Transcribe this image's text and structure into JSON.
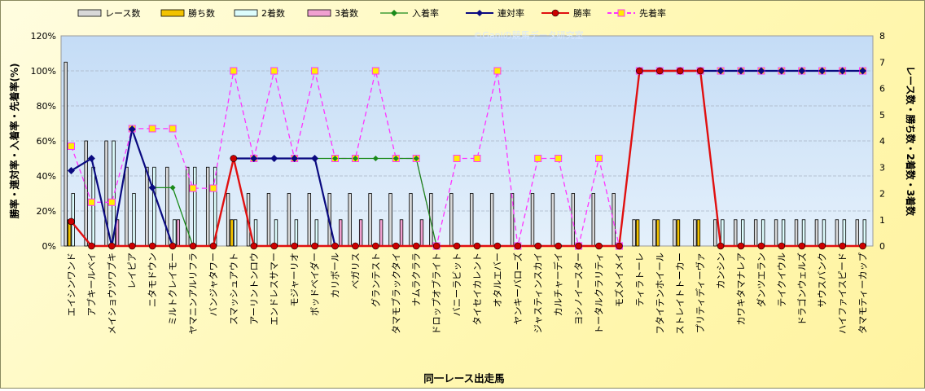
{
  "chart_data": {
    "type": "bar",
    "title": "",
    "watermark": "©Ganiの競馬データ研究室",
    "xlabel": "同一レース出走馬",
    "ylabel_left": "勝率・連対率・入着率・先着率(%)",
    "ylabel_right": "レース数・勝ち数・2着数・3着数",
    "left_ticks": [
      "0%",
      "20%",
      "40%",
      "60%",
      "80%",
      "100%",
      "120%"
    ],
    "right_ticks": [
      "0",
      "1",
      "2",
      "3",
      "4",
      "5",
      "6",
      "7",
      "8"
    ],
    "ylim_left": [
      0,
      120
    ],
    "ylim_right": [
      0,
      8
    ],
    "grid": true,
    "legend_position": "top",
    "categories": [
      "エイシンワンド",
      "アブキールベイ",
      "メイショウツワブキ",
      "レイピア",
      "ニタモドウン",
      "ミルトクレイモー",
      "ヤマニンアルリフラ",
      "バンジャタワー",
      "スマッシュアウト",
      "アーリントンロウ",
      "エンドレスサマー",
      "モジャーリオ",
      "ボッドベイダー",
      "カリボール",
      "ベガリス",
      "グランテスト",
      "タマモブラックタイ",
      "ナムラクララ",
      "ドロップオブライト",
      "バニーラビット",
      "タイセイカレント",
      "オタルエバー",
      "ヤンキーバローズ",
      "ジャスティンスカイ",
      "カルチャーデイ",
      "ヨシノイースター",
      "トータルクラリティ",
      "モズメイメイ",
      "ティラトーレ",
      "フタイテンホイール",
      "ストレイトトーカー",
      "プリティディーヴァ",
      "カンシン",
      "カワキタマナレア",
      "ダンツエラン",
      "テイクイウル",
      "ドラゴンウェルズ",
      "サウスバンク",
      "ハイファイスピード",
      "タマモティーカップ"
    ],
    "series": [
      {
        "name": "レース数",
        "axis": "right",
        "color": "#d8d8d8",
        "values": [
          7,
          4,
          4,
          3,
          3,
          3,
          3,
          3,
          2,
          2,
          2,
          2,
          2,
          2,
          2,
          2,
          2,
          2,
          2,
          2,
          2,
          2,
          2,
          2,
          2,
          2,
          2,
          2,
          1,
          1,
          1,
          1,
          1,
          1,
          1,
          1,
          1,
          1,
          1,
          1
        ]
      },
      {
        "name": "勝ち数",
        "axis": "right",
        "color": "#f2c200",
        "values": [
          1,
          0,
          0,
          0,
          0,
          0,
          0,
          0,
          1,
          0,
          0,
          0,
          0,
          0,
          0,
          0,
          0,
          0,
          0,
          0,
          0,
          0,
          0,
          0,
          0,
          0,
          0,
          0,
          1,
          1,
          1,
          1,
          0,
          0,
          0,
          0,
          0,
          0,
          0,
          0
        ]
      },
      {
        "name": "2着数",
        "axis": "right",
        "color": "#dcfcfc",
        "values": [
          2,
          3,
          4,
          2,
          3,
          1,
          3,
          3,
          1,
          1,
          1,
          1,
          1,
          0,
          0,
          0,
          0,
          0,
          0,
          0,
          0,
          0,
          0,
          0,
          0,
          0,
          0,
          0,
          0,
          0,
          0,
          0,
          1,
          1,
          1,
          1,
          1,
          1,
          1,
          1
        ]
      },
      {
        "name": "3着数",
        "axis": "right",
        "color": "#f0a0d0",
        "values": [
          0,
          0,
          1,
          0,
          0,
          1,
          0,
          0,
          0,
          0,
          0,
          0,
          0,
          1,
          1,
          1,
          1,
          1,
          0,
          0,
          0,
          0,
          0,
          0,
          0,
          0,
          0,
          0,
          0,
          0,
          0,
          0,
          0,
          0,
          0,
          0,
          0,
          0,
          0,
          0
        ]
      },
      {
        "name": "入着率",
        "axis": "left",
        "color": "#1a8a1a",
        "values": [
          43,
          50,
          0,
          66.7,
          33.3,
          33.3,
          0,
          null,
          50,
          50,
          50,
          50,
          50,
          50,
          50,
          50,
          50,
          50,
          0,
          null,
          null,
          null,
          null,
          null,
          null,
          null,
          null,
          null,
          100,
          100,
          100,
          100,
          100,
          100,
          100,
          100,
          100,
          100,
          100,
          100
        ]
      },
      {
        "name": "連対率",
        "axis": "left",
        "color": "#0a0a80",
        "values": [
          43,
          50,
          0,
          66.7,
          33.3,
          0,
          null,
          null,
          50,
          50,
          50,
          50,
          50,
          0,
          null,
          null,
          null,
          null,
          null,
          null,
          null,
          null,
          null,
          null,
          null,
          null,
          null,
          null,
          100,
          100,
          100,
          100,
          100,
          100,
          100,
          100,
          100,
          100,
          100,
          100
        ]
      },
      {
        "name": "勝率",
        "axis": "left",
        "color": "#e01010",
        "values": [
          14,
          0,
          0,
          0,
          0,
          0,
          0,
          0,
          50,
          0,
          0,
          0,
          0,
          0,
          0,
          0,
          0,
          0,
          0,
          0,
          0,
          0,
          0,
          0,
          0,
          0,
          0,
          0,
          100,
          100,
          100,
          100,
          0,
          0,
          0,
          0,
          0,
          0,
          0,
          0
        ]
      },
      {
        "name": "先着率",
        "axis": "left",
        "color": "#ff33ff",
        "values": [
          57,
          25,
          25,
          67,
          67,
          67,
          33,
          33,
          100,
          50,
          100,
          50,
          100,
          50,
          50,
          100,
          50,
          50,
          0,
          50,
          50,
          100,
          0,
          50,
          50,
          0,
          50,
          0,
          100,
          100,
          100,
          100,
          100,
          100,
          100,
          100,
          100,
          100,
          100,
          100
        ]
      }
    ]
  }
}
